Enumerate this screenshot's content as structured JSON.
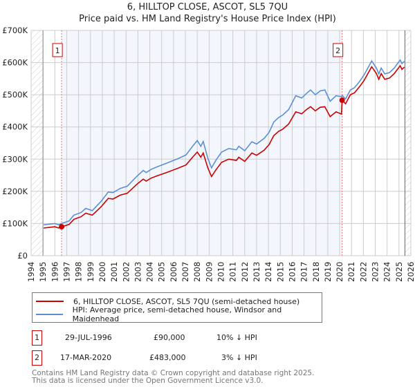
{
  "chart_data": {
    "type": "line",
    "title": "6, HILLTOP CLOSE, ASCOT, SL5 7QU",
    "subtitle": "Price paid vs. HM Land Registry's House Price Index (HPI)",
    "xlabel": "",
    "ylabel": "",
    "xlim": [
      1994,
      2026
    ],
    "ylim": [
      0,
      700000
    ],
    "x_ticks": [
      "1994",
      "1995",
      "1996",
      "1997",
      "1998",
      "1999",
      "2000",
      "2001",
      "2002",
      "2003",
      "2004",
      "2005",
      "2006",
      "2007",
      "2008",
      "2009",
      "2010",
      "2011",
      "2012",
      "2013",
      "2014",
      "2015",
      "2016",
      "2017",
      "2018",
      "2019",
      "2020",
      "2021",
      "2022",
      "2023",
      "2024",
      "2025",
      "2026"
    ],
    "y_ticks": [
      {
        "value": 0,
        "label": "£0"
      },
      {
        "value": 100000,
        "label": "£100K"
      },
      {
        "value": 200000,
        "label": "£200K"
      },
      {
        "value": 300000,
        "label": "£300K"
      },
      {
        "value": 400000,
        "label": "£400K"
      },
      {
        "value": 500000,
        "label": "£500K"
      },
      {
        "value": 600000,
        "label": "£600K"
      },
      {
        "value": 700000,
        "label": "£700K"
      }
    ],
    "grid": true,
    "data_range": [
      1995,
      2025.5
    ],
    "shaded_range": [
      1996.57,
      2020.21
    ],
    "series": [
      {
        "name": "6, HILLTOP CLOSE, ASCOT, SL5 7QU (semi-detached house)",
        "color": "#cc0000",
        "x": [
          1995.06,
          1996,
          1996.3,
          1996.57,
          1997.2,
          1997.6,
          1998.2,
          1998.6,
          1999.15,
          1999.9,
          2000.5,
          2000.9,
          2001.5,
          2002.1,
          2002.95,
          2003.45,
          2003.7,
          2004.1,
          2004.6,
          2005.4,
          2006.4,
          2007.05,
          2007.65,
          2008.0,
          2008.3,
          2008.5,
          2008.9,
          2009.2,
          2009.6,
          2010.05,
          2010.65,
          2011.3,
          2011.5,
          2012.0,
          2012.6,
          2013.0,
          2013.65,
          2014.05,
          2014.45,
          2014.85,
          2015.2,
          2015.7,
          2016.3,
          2016.8,
          2017.2,
          2017.55,
          2017.95,
          2018.35,
          2018.75,
          2019.2,
          2019.7,
          2020.15,
          2020.21,
          2020.5,
          2020.9,
          2021.25,
          2021.65,
          2022.05,
          2022.7,
          2023.1,
          2023.3,
          2023.5,
          2023.8,
          2024.2,
          2024.6,
          2025.1,
          2025.25,
          2025.45
        ],
        "y": [
          86000,
          90000,
          86000,
          90000,
          97000,
          113000,
          121000,
          132000,
          126000,
          152000,
          178000,
          176000,
          188000,
          194000,
          223000,
          238000,
          232000,
          241000,
          248000,
          258000,
          272000,
          282000,
          308000,
          322000,
          306000,
          319000,
          272000,
          246000,
          268000,
          290000,
          300000,
          296000,
          306000,
          293000,
          319000,
          312000,
          328000,
          345000,
          373000,
          386000,
          393000,
          409000,
          447000,
          441000,
          454000,
          463000,
          450000,
          461000,
          463000,
          432000,
          447000,
          440000,
          483000,
          472000,
          500000,
          506000,
          524000,
          544000,
          587000,
          566000,
          548000,
          566000,
          548000,
          552000,
          566000,
          590000,
          579000,
          586000
        ]
      },
      {
        "name": "HPI: Average price, semi-detached house, Windsor and Maidenhead",
        "color": "#5b8fd4",
        "x": [
          1995.06,
          1996,
          1996.3,
          1996.57,
          1997.2,
          1997.6,
          1998.2,
          1998.6,
          1999.15,
          1999.9,
          2000.5,
          2000.9,
          2001.5,
          2002.1,
          2002.95,
          2003.45,
          2003.7,
          2004.1,
          2004.6,
          2005.4,
          2006.4,
          2007.05,
          2007.65,
          2008.0,
          2008.3,
          2008.5,
          2008.9,
          2009.2,
          2009.6,
          2010.05,
          2010.65,
          2011.3,
          2011.5,
          2012.0,
          2012.6,
          2013.0,
          2013.65,
          2014.05,
          2014.45,
          2014.85,
          2015.2,
          2015.7,
          2016.3,
          2016.8,
          2017.2,
          2017.55,
          2017.95,
          2018.35,
          2018.75,
          2019.2,
          2019.7,
          2020.15,
          2020.21,
          2020.5,
          2020.9,
          2021.25,
          2021.65,
          2022.05,
          2022.7,
          2023.1,
          2023.3,
          2023.5,
          2023.8,
          2024.2,
          2024.6,
          2025.1,
          2025.25,
          2025.45
        ],
        "y": [
          96000,
          100000,
          96000,
          100000,
          108000,
          126000,
          134000,
          147000,
          140000,
          169000,
          198000,
          196000,
          209000,
          216000,
          248000,
          265000,
          258000,
          268000,
          276000,
          287000,
          302000,
          313000,
          342000,
          358000,
          340000,
          355000,
          302000,
          273000,
          298000,
          322000,
          333000,
          329000,
          340000,
          326000,
          354000,
          347000,
          365000,
          383000,
          415000,
          429000,
          437000,
          454000,
          497000,
          490000,
          504000,
          515000,
          500000,
          512000,
          515000,
          480000,
          497000,
          494000,
          498000,
          487000,
          515000,
          522000,
          540000,
          561000,
          605000,
          583000,
          565000,
          583000,
          565000,
          569000,
          583000,
          608000,
          597000,
          604000
        ]
      }
    ],
    "annotations": [
      {
        "label": "1",
        "x": 1996.57,
        "y": 90000
      },
      {
        "label": "2",
        "x": 2020.21,
        "y": 483000
      }
    ]
  },
  "header": {
    "title": "6, HILLTOP CLOSE, ASCOT, SL5 7QU",
    "subtitle": "Price paid vs. HM Land Registry's House Price Index (HPI)"
  },
  "legend": {
    "property": "6, HILLTOP CLOSE, ASCOT, SL5 7QU (semi-detached house)",
    "hpi": "HPI: Average price, semi-detached house, Windsor and Maidenhead"
  },
  "sales": [
    {
      "num": "1",
      "date": "29-JUL-1996",
      "price": "£90,000",
      "vs_hpi": "10% ↓ HPI"
    },
    {
      "num": "2",
      "date": "17-MAR-2020",
      "price": "£483,000",
      "vs_hpi": "3% ↓ HPI"
    }
  ],
  "footer": {
    "line1": "Contains HM Land Registry data © Crown copyright and database right 2025.",
    "line2": "This data is licensed under the Open Government Licence v3.0."
  }
}
